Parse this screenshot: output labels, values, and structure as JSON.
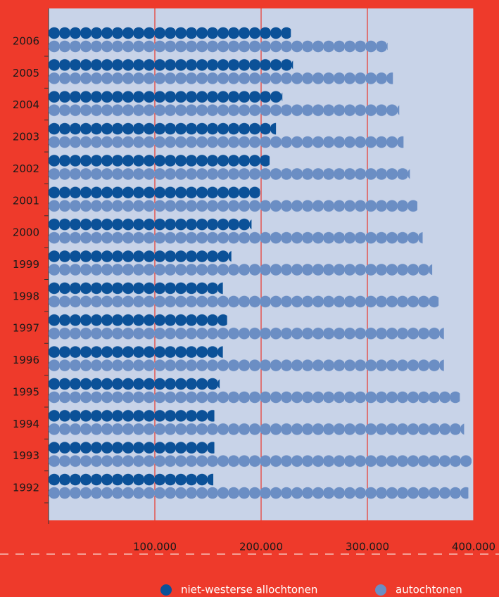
{
  "chart_data": {
    "type": "bar",
    "orientation": "horizontal",
    "categories": [
      "2006",
      "2005",
      "2004",
      "2003",
      "2002",
      "2001",
      "2000",
      "1999",
      "1998",
      "1997",
      "1996",
      "1995",
      "1994",
      "1993",
      "1992"
    ],
    "series": [
      {
        "name": "niet-westerse allochtonen",
        "color": "#0b5198",
        "values": [
          228000,
          230000,
          220000,
          214000,
          208000,
          199000,
          191000,
          172000,
          164000,
          168000,
          164000,
          161000,
          156000,
          156000,
          155000
        ]
      },
      {
        "name": "autochtonen",
        "color": "#6b8ec4",
        "values": [
          319000,
          324000,
          330000,
          334000,
          340000,
          347000,
          352000,
          361000,
          367000,
          372000,
          372000,
          387000,
          391000,
          398000,
          395000
        ]
      }
    ],
    "xlim": [
      0,
      400000
    ],
    "xticks": [
      {
        "value": 100000,
        "label": "100.000"
      },
      {
        "value": 200000,
        "label": "200.000"
      },
      {
        "value": 300000,
        "label": "300.000"
      },
      {
        "value": 400000,
        "label": "400.000"
      }
    ],
    "grid": true,
    "grid_color": "#e8362a",
    "plot_background": "#c8d3e8"
  }
}
